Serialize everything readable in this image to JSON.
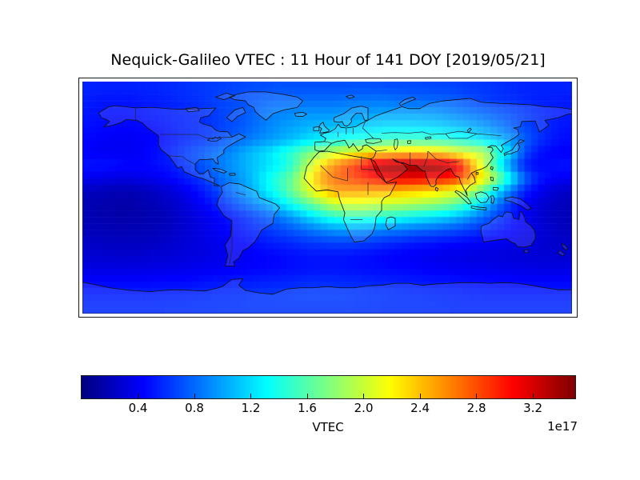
{
  "title": "Nequick-Galileo VTEC : 11 Hour of 141 DOY [2019/05/21]",
  "colorbar": {
    "label": "VTEC",
    "offset_text": "1e17",
    "tick_labels": [
      "0.4",
      "0.8",
      "1.2",
      "1.6",
      "2.0",
      "2.4",
      "2.8",
      "3.2"
    ],
    "tick_values": [
      0.4,
      0.8,
      1.2,
      1.6,
      2.0,
      2.4,
      2.8,
      3.2
    ],
    "vmin": 0.0,
    "vmax": 3.5,
    "colormap": "jet"
  },
  "chart_data": {
    "type": "heatmap",
    "title": "Nequick-Galileo VTEC : 11 Hour of 141 DOY [2019/05/21]",
    "projection": "equirectangular world map",
    "colormap": "jet",
    "units_multiplier": "1e17",
    "colorbar_label": "VTEC",
    "vmin": 0.0,
    "vmax": 3.5,
    "colorbar_ticks": [
      0.4,
      0.8,
      1.2,
      1.6,
      2.0,
      2.4,
      2.8,
      3.2
    ],
    "lon_start": -180,
    "lon_step": 10,
    "lat_start": 90,
    "lat_step": -10,
    "grid": [
      [
        0.55,
        0.54,
        0.54,
        0.54,
        0.55,
        0.56,
        0.58,
        0.6,
        0.62,
        0.64,
        0.66,
        0.68,
        0.7,
        0.7,
        0.72,
        0.72,
        0.72,
        0.72,
        0.72,
        0.72,
        0.72,
        0.72,
        0.7,
        0.7,
        0.7,
        0.68,
        0.68,
        0.66,
        0.64,
        0.62,
        0.6,
        0.58,
        0.56,
        0.55,
        0.55,
        0.55
      ],
      [
        0.52,
        0.5,
        0.5,
        0.5,
        0.52,
        0.53,
        0.55,
        0.58,
        0.6,
        0.64,
        0.68,
        0.7,
        0.74,
        0.78,
        0.8,
        0.8,
        0.82,
        0.82,
        0.82,
        0.84,
        0.85,
        0.85,
        0.85,
        0.82,
        0.8,
        0.8,
        0.78,
        0.75,
        0.7,
        0.66,
        0.62,
        0.6,
        0.57,
        0.54,
        0.53,
        0.52
      ],
      [
        0.5,
        0.49,
        0.48,
        0.48,
        0.5,
        0.52,
        0.54,
        0.56,
        0.58,
        0.62,
        0.68,
        0.72,
        0.78,
        0.85,
        0.9,
        0.92,
        0.95,
        0.95,
        0.95,
        0.96,
        0.98,
        1.0,
        1.0,
        1.0,
        1.0,
        0.98,
        0.95,
        0.9,
        0.85,
        0.8,
        0.75,
        0.7,
        0.64,
        0.58,
        0.54,
        0.52
      ],
      [
        0.48,
        0.46,
        0.45,
        0.45,
        0.46,
        0.48,
        0.52,
        0.55,
        0.58,
        0.62,
        0.68,
        0.72,
        0.8,
        0.88,
        0.95,
        1.0,
        1.05,
        1.08,
        1.1,
        1.12,
        1.15,
        1.18,
        1.2,
        1.2,
        1.2,
        1.18,
        1.15,
        1.1,
        1.05,
        0.98,
        0.88,
        0.78,
        0.68,
        0.6,
        0.54,
        0.5
      ],
      [
        0.45,
        0.42,
        0.4,
        0.4,
        0.42,
        0.45,
        0.5,
        0.55,
        0.6,
        0.65,
        0.72,
        0.8,
        0.88,
        0.95,
        1.02,
        1.1,
        1.2,
        1.28,
        1.32,
        1.38,
        1.42,
        1.45,
        1.5,
        1.5,
        1.5,
        1.48,
        1.45,
        1.4,
        1.32,
        1.22,
        1.1,
        0.95,
        0.78,
        0.62,
        0.52,
        0.47
      ],
      [
        0.42,
        0.4,
        0.4,
        0.4,
        0.42,
        0.48,
        0.55,
        0.65,
        0.72,
        0.8,
        0.88,
        0.98,
        1.1,
        1.2,
        1.35,
        1.5,
        1.7,
        1.85,
        2.0,
        2.1,
        2.2,
        2.3,
        2.35,
        2.4,
        2.4,
        2.35,
        2.3,
        2.15,
        2.05,
        1.95,
        1.5,
        1.15,
        0.7,
        0.5,
        0.44,
        0.42
      ],
      [
        0.5,
        0.5,
        0.48,
        0.45,
        0.45,
        0.48,
        0.52,
        0.6,
        0.7,
        0.8,
        0.9,
        1.0,
        1.1,
        1.2,
        1.3,
        1.5,
        1.9,
        2.3,
        2.6,
        2.8,
        3.0,
        3.3,
        3.4,
        3.42,
        3.45,
        3.45,
        3.4,
        3.2,
        2.6,
        2.0,
        1.4,
        0.9,
        0.55,
        0.45,
        0.48,
        0.5
      ],
      [
        0.38,
        0.36,
        0.34,
        0.34,
        0.36,
        0.4,
        0.45,
        0.52,
        0.6,
        0.72,
        0.85,
        0.95,
        1.1,
        1.3,
        1.5,
        1.7,
        2.1,
        2.5,
        2.7,
        2.8,
        2.9,
        3.0,
        3.1,
        3.1,
        3.1,
        3.05,
        3.0,
        2.9,
        2.6,
        2.2,
        1.8,
        1.3,
        0.8,
        0.55,
        0.45,
        0.4
      ],
      [
        0.22,
        0.2,
        0.18,
        0.18,
        0.2,
        0.25,
        0.3,
        0.38,
        0.48,
        0.6,
        0.75,
        0.9,
        1.05,
        1.25,
        1.45,
        1.7,
        2.0,
        2.3,
        2.5,
        2.52,
        2.5,
        2.48,
        2.45,
        2.4,
        2.35,
        2.3,
        2.2,
        2.1,
        1.9,
        1.6,
        1.2,
        0.85,
        0.55,
        0.4,
        0.3,
        0.25
      ],
      [
        0.18,
        0.16,
        0.15,
        0.15,
        0.17,
        0.2,
        0.25,
        0.32,
        0.4,
        0.5,
        0.62,
        0.75,
        0.88,
        1.0,
        1.2,
        1.4,
        1.6,
        1.8,
        2.0,
        2.05,
        2.05,
        2.0,
        1.98,
        1.95,
        1.9,
        1.85,
        1.78,
        1.65,
        1.45,
        1.15,
        0.85,
        0.6,
        0.42,
        0.32,
        0.25,
        0.2
      ],
      [
        0.18,
        0.16,
        0.15,
        0.15,
        0.16,
        0.18,
        0.22,
        0.28,
        0.34,
        0.4,
        0.48,
        0.55,
        0.64,
        0.74,
        0.85,
        0.98,
        1.15,
        1.3,
        1.45,
        1.5,
        1.5,
        1.46,
        1.42,
        1.36,
        1.3,
        1.25,
        1.18,
        1.08,
        0.95,
        0.8,
        0.65,
        0.52,
        0.4,
        0.3,
        0.24,
        0.2
      ],
      [
        0.2,
        0.19,
        0.18,
        0.18,
        0.19,
        0.2,
        0.24,
        0.28,
        0.33,
        0.38,
        0.44,
        0.5,
        0.56,
        0.62,
        0.68,
        0.75,
        0.82,
        0.9,
        0.96,
        0.98,
        0.96,
        0.92,
        0.88,
        0.85,
        0.8,
        0.78,
        0.74,
        0.7,
        0.64,
        0.58,
        0.52,
        0.46,
        0.38,
        0.32,
        0.26,
        0.22
      ],
      [
        0.24,
        0.23,
        0.22,
        0.22,
        0.23,
        0.24,
        0.27,
        0.3,
        0.33,
        0.37,
        0.4,
        0.44,
        0.48,
        0.52,
        0.55,
        0.58,
        0.62,
        0.64,
        0.66,
        0.66,
        0.64,
        0.62,
        0.58,
        0.55,
        0.52,
        0.5,
        0.48,
        0.46,
        0.44,
        0.42,
        0.4,
        0.37,
        0.33,
        0.3,
        0.27,
        0.25
      ],
      [
        0.28,
        0.28,
        0.27,
        0.27,
        0.28,
        0.29,
        0.3,
        0.32,
        0.33,
        0.35,
        0.37,
        0.4,
        0.42,
        0.44,
        0.46,
        0.48,
        0.5,
        0.5,
        0.5,
        0.5,
        0.48,
        0.46,
        0.44,
        0.42,
        0.4,
        0.38,
        0.36,
        0.35,
        0.34,
        0.33,
        0.32,
        0.31,
        0.3,
        0.29,
        0.29,
        0.28
      ],
      [
        0.34,
        0.34,
        0.34,
        0.34,
        0.34,
        0.35,
        0.36,
        0.37,
        0.38,
        0.4,
        0.41,
        0.42,
        0.44,
        0.45,
        0.46,
        0.48,
        0.49,
        0.5,
        0.5,
        0.49,
        0.48,
        0.47,
        0.46,
        0.45,
        0.44,
        0.42,
        0.41,
        0.4,
        0.39,
        0.38,
        0.37,
        0.36,
        0.35,
        0.34,
        0.34,
        0.34
      ],
      [
        0.44,
        0.44,
        0.44,
        0.44,
        0.44,
        0.45,
        0.46,
        0.46,
        0.48,
        0.5,
        0.5,
        0.52,
        0.53,
        0.54,
        0.55,
        0.56,
        0.58,
        0.58,
        0.58,
        0.57,
        0.56,
        0.55,
        0.54,
        0.53,
        0.52,
        0.5,
        0.5,
        0.49,
        0.48,
        0.47,
        0.46,
        0.45,
        0.44,
        0.44,
        0.44,
        0.44
      ],
      [
        0.54,
        0.54,
        0.54,
        0.54,
        0.54,
        0.55,
        0.55,
        0.56,
        0.57,
        0.58,
        0.59,
        0.6,
        0.61,
        0.62,
        0.63,
        0.64,
        0.65,
        0.65,
        0.64,
        0.64,
        0.63,
        0.62,
        0.61,
        0.6,
        0.59,
        0.58,
        0.57,
        0.56,
        0.55,
        0.55,
        0.54,
        0.54,
        0.54,
        0.54,
        0.54,
        0.54
      ],
      [
        0.58,
        0.58,
        0.58,
        0.58,
        0.58,
        0.58,
        0.59,
        0.59,
        0.6,
        0.6,
        0.61,
        0.61,
        0.62,
        0.62,
        0.62,
        0.62,
        0.62,
        0.62,
        0.62,
        0.62,
        0.61,
        0.61,
        0.6,
        0.6,
        0.6,
        0.59,
        0.59,
        0.58,
        0.58,
        0.58,
        0.58,
        0.58,
        0.58,
        0.58,
        0.58,
        0.58
      ]
    ]
  }
}
